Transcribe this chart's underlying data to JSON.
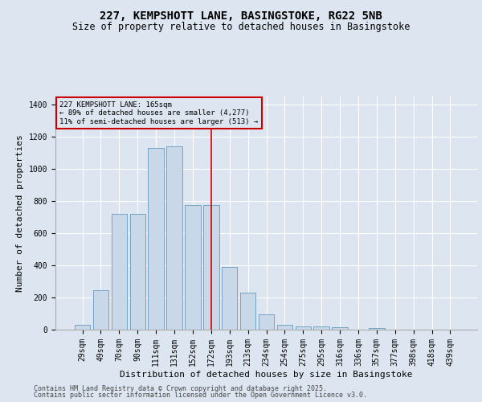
{
  "title": "227, KEMPSHOTT LANE, BASINGSTOKE, RG22 5NB",
  "subtitle": "Size of property relative to detached houses in Basingstoke",
  "xlabel": "Distribution of detached houses by size in Basingstoke",
  "ylabel": "Number of detached properties",
  "categories": [
    "29sqm",
    "49sqm",
    "70sqm",
    "90sqm",
    "111sqm",
    "131sqm",
    "152sqm",
    "172sqm",
    "193sqm",
    "213sqm",
    "234sqm",
    "254sqm",
    "275sqm",
    "295sqm",
    "316sqm",
    "336sqm",
    "357sqm",
    "377sqm",
    "398sqm",
    "418sqm",
    "439sqm"
  ],
  "values": [
    30,
    245,
    720,
    720,
    1130,
    1140,
    775,
    775,
    390,
    230,
    95,
    30,
    22,
    18,
    13,
    0,
    8,
    0,
    0,
    0,
    0
  ],
  "bar_color": "#c8d8e8",
  "bar_edge_color": "#6699bb",
  "vline_x": 7,
  "vline_color": "#cc0000",
  "annotation_text": "227 KEMPSHOTT LANE: 165sqm\n← 89% of detached houses are smaller (4,277)\n11% of semi-detached houses are larger (513) →",
  "annotation_box_color": "#cc0000",
  "background_color": "#dde6f0",
  "ylim": [
    0,
    1450
  ],
  "yticks": [
    0,
    200,
    400,
    600,
    800,
    1000,
    1200,
    1400
  ],
  "footer1": "Contains HM Land Registry data © Crown copyright and database right 2025.",
  "footer2": "Contains public sector information licensed under the Open Government Licence v3.0.",
  "title_fontsize": 10,
  "subtitle_fontsize": 8.5,
  "label_fontsize": 8,
  "tick_fontsize": 7,
  "footer_fontsize": 6
}
